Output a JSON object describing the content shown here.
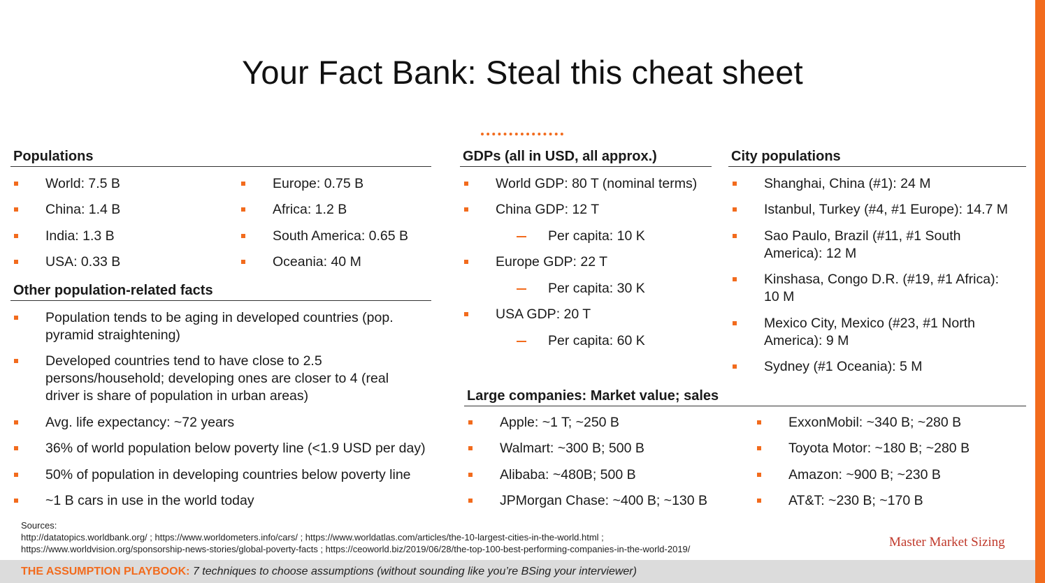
{
  "title": "Your Fact Bank: Steal this cheat sheet",
  "populations": {
    "heading": "Populations",
    "left": [
      "World: 7.5 B",
      "China: 1.4 B",
      "India: 1.3 B",
      "USA: 0.33 B"
    ],
    "right": [
      "Europe: 0.75 B",
      "Africa: 1.2 B",
      "South America: 0.65 B",
      "Oceania: 40 M"
    ]
  },
  "other_facts": {
    "heading": "Other population-related facts",
    "items": [
      [
        "Population tends to be aging in developed countries (pop.",
        "pyramid straightening)"
      ],
      [
        "Developed countries tend to have close to 2.5",
        "persons/household; developing ones are closer to 4 (real",
        "driver is share of population in urban areas)"
      ],
      [
        "Avg. life expectancy: ~72 years"
      ],
      [
        "36% of world population below poverty line (<1.9 USD per day)"
      ],
      [
        "50% of population in developing countries below poverty line"
      ],
      [
        "~1 B cars in use in the world today"
      ]
    ]
  },
  "gdps": {
    "heading": "GDPs (all in USD, all approx.)",
    "items": [
      "World GDP: 80 T (nominal terms)",
      "China GDP: 12 T",
      "Per capita: 10 K",
      "Europe GDP: 22 T",
      "Per capita: 30 K",
      "USA GDP: 20 T",
      "Per capita: 60 K"
    ]
  },
  "cities": {
    "heading": "City populations",
    "items": [
      [
        "Shanghai, China (#1): 24 M"
      ],
      [
        "Istanbul, Turkey (#4, #1 Europe): 14.7 M"
      ],
      [
        "Sao Paulo, Brazil (#11, #1 South",
        "America): 12 M"
      ],
      [
        "Kinshasa, Congo D.R. (#19, #1 Africa):",
        "10 M"
      ],
      [
        "Mexico City, Mexico (#23, #1 North",
        "America): 9 M"
      ],
      [
        "Sydney (#1 Oceania): 5 M"
      ]
    ]
  },
  "companies": {
    "heading": "Large companies: Market value; sales",
    "left": [
      "Apple: ~1 T; ~250 B",
      "Walmart: ~300 B; 500 B",
      "Alibaba: ~480B; 500 B",
      "JPMorgan Chase: ~400 B; ~130 B"
    ],
    "right": [
      "ExxonMobil: ~340 B; ~280 B",
      "Toyota Motor: ~180 B; ~280 B",
      "Amazon: ~900 B; ~230 B",
      "AT&T: ~230 B; ~170 B"
    ]
  },
  "sources": {
    "label": "Sources:",
    "line1": "http://datatopics.worldbank.org/ ; https://www.worldometers.info/cars/ ; https://www.worldatlas.com/articles/the-10-largest-cities-in-the-world.html ;",
    "line2": "https://www.worldvision.org/sponsorship-news-stories/global-poverty-facts ; https://ceoworld.biz/2019/06/28/the-top-100-best-performing-companies-in-the-world-2019/"
  },
  "brand": "Master Market Sizing",
  "footer": {
    "strong": "THE ASSUMPTION PLAYBOOK:",
    "em": "7 techniques to choose assumptions (without sounding like you’re BSing your interviewer)"
  },
  "colors": {
    "accent": "#f26b1d",
    "footer_bg": "#dcdcdc"
  }
}
